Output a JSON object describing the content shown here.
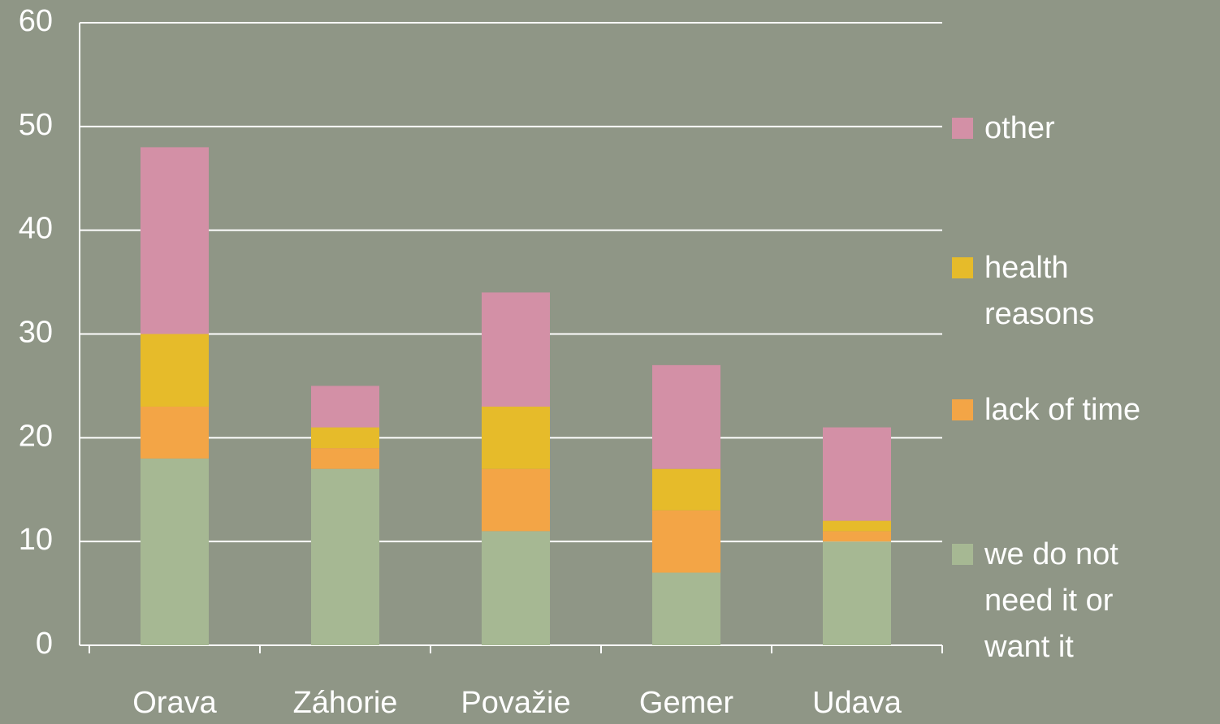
{
  "chart_data": {
    "type": "stacked_bar",
    "categories": [
      "Orava",
      "Záhorie",
      "Považie",
      "Gemer",
      "Udava"
    ],
    "series": [
      {
        "name": "we do not need it or want it",
        "color": "#a6b893",
        "values": [
          18,
          17,
          11,
          7,
          10
        ]
      },
      {
        "name": "lack of time",
        "color": "#f3a546",
        "values": [
          5,
          2,
          6,
          6,
          1
        ]
      },
      {
        "name": "health reasons",
        "color": "#e6bb2a",
        "values": [
          7,
          2,
          6,
          4,
          1
        ]
      },
      {
        "name": "other",
        "color": "#d390a6",
        "values": [
          18,
          4,
          11,
          10,
          9
        ]
      }
    ],
    "ylim": [
      0,
      60
    ],
    "yticks": [
      0,
      10,
      20,
      30,
      40,
      50,
      60
    ],
    "grid": true,
    "legend": "right"
  }
}
